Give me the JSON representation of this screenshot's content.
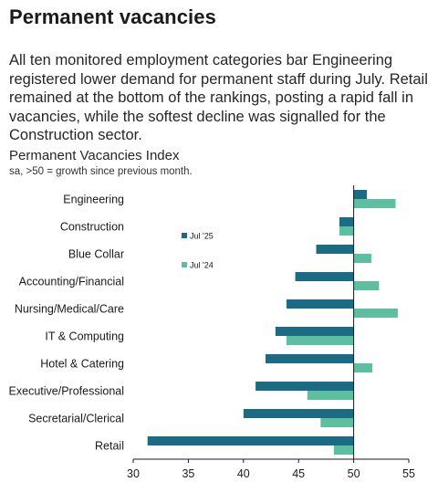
{
  "header": {
    "title": "Permanent vacancies",
    "intro": "All ten monitored employment categories bar Engineering registered lower demand for permanent staff during July. Retail remained at the bottom of the rankings, posting a rapid fall in vacancies, while the softest decline was signalled for the Construction sector."
  },
  "chart_data": {
    "type": "bar",
    "orientation": "horizontal",
    "title": "Permanent Vacancies Index",
    "subtitle": "sa, >50 = growth since previous month.",
    "categories": [
      "Engineering",
      "Construction",
      "Blue Collar",
      "Accounting/Financial",
      "Nursing/Medical/Care",
      "IT & Computing",
      "Hotel & Catering",
      "Executive/Professional",
      "Secretarial/Clerical",
      "Retail"
    ],
    "series": [
      {
        "name": "Jul '25",
        "color": "#1c6b85",
        "values": [
          51.2,
          48.7,
          46.6,
          44.7,
          43.9,
          42.9,
          42.0,
          41.1,
          40.0,
          31.3
        ]
      },
      {
        "name": "Jul '24",
        "color": "#5dbfa0",
        "values": [
          53.8,
          48.7,
          51.6,
          52.3,
          54.0,
          43.9,
          51.7,
          45.8,
          47.0,
          48.2
        ]
      }
    ],
    "xlim": [
      30,
      55
    ],
    "xticks": [
      30,
      35,
      40,
      45,
      50,
      55
    ],
    "baseline": 50,
    "legend_position": "left, inside plot"
  }
}
